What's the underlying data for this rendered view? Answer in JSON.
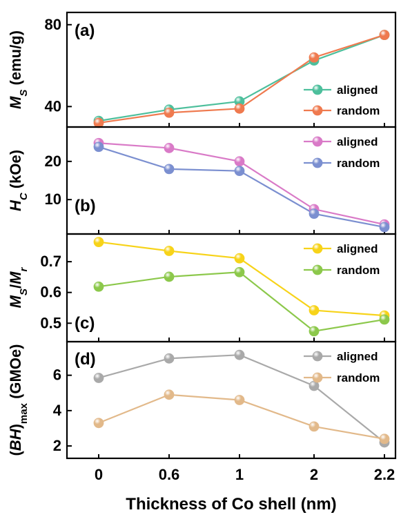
{
  "chart_data": {
    "type": "line",
    "categories": [
      "0",
      "0.6",
      "1",
      "2",
      "2.2"
    ],
    "xlabel": "Thickness of Co shell (nm)",
    "panels": [
      {
        "id": "a",
        "tag": "(a)",
        "ylabel": {
          "main": "M",
          "sub": "S",
          "rest": " (emu/g)"
        },
        "ylim": [
          30,
          86
        ],
        "yticks": [
          40,
          80
        ],
        "legend": "right",
        "series": [
          {
            "name": "aligned",
            "color": "#4dbf9c",
            "values": [
              33,
              38.5,
              42.5,
              62.5,
              75
            ]
          },
          {
            "name": "random",
            "color": "#ef7a4f",
            "values": [
              32,
              37,
              39,
              64,
              75
            ]
          }
        ]
      },
      {
        "id": "b",
        "tag": "(b)",
        "ylabel": {
          "main": "H",
          "sub": "C",
          "rest": " (kOe)"
        },
        "ylim": [
          1,
          29
        ],
        "yticks": [
          10,
          20
        ],
        "legend": "top-right",
        "series": [
          {
            "name": "aligned",
            "color": "#d97ac7",
            "values": [
              24.8,
              23.5,
              20,
              7.5,
              3.5
            ]
          },
          {
            "name": "random",
            "color": "#7b8fd0",
            "values": [
              23.8,
              18,
              17.5,
              6.3,
              2.8
            ]
          }
        ]
      },
      {
        "id": "c",
        "tag": "(c)",
        "ylabel": {
          "main": "M",
          "sub": "S",
          "rest": "/",
          "main2": "M",
          "sub2": "r"
        },
        "ylim": [
          0.44,
          0.79
        ],
        "yticks": [
          0.5,
          0.6,
          0.7
        ],
        "legend": "top-right",
        "series": [
          {
            "name": "aligned",
            "color": "#f7d319",
            "values": [
              0.764,
              0.735,
              0.711,
              0.542,
              0.525
            ]
          },
          {
            "name": "random",
            "color": "#8cc84b",
            "values": [
              0.619,
              0.651,
              0.666,
              0.474,
              0.512
            ]
          }
        ]
      },
      {
        "id": "d",
        "tag": "(d)",
        "ylabel": {
          "pre": "(",
          "main": "BH",
          "rest": ")",
          "sub": "max",
          "tail": " (GMOe)"
        },
        "ylim": [
          1.3,
          7.9
        ],
        "yticks": [
          2,
          4,
          6
        ],
        "legend": "top-right",
        "series": [
          {
            "name": "aligned",
            "color": "#a9a9a9",
            "values": [
              5.85,
              6.95,
              7.15,
              5.4,
              2.2
            ]
          },
          {
            "name": "random",
            "color": "#e2b98a",
            "values": [
              3.3,
              4.9,
              4.6,
              3.1,
              2.4
            ]
          }
        ]
      }
    ]
  }
}
